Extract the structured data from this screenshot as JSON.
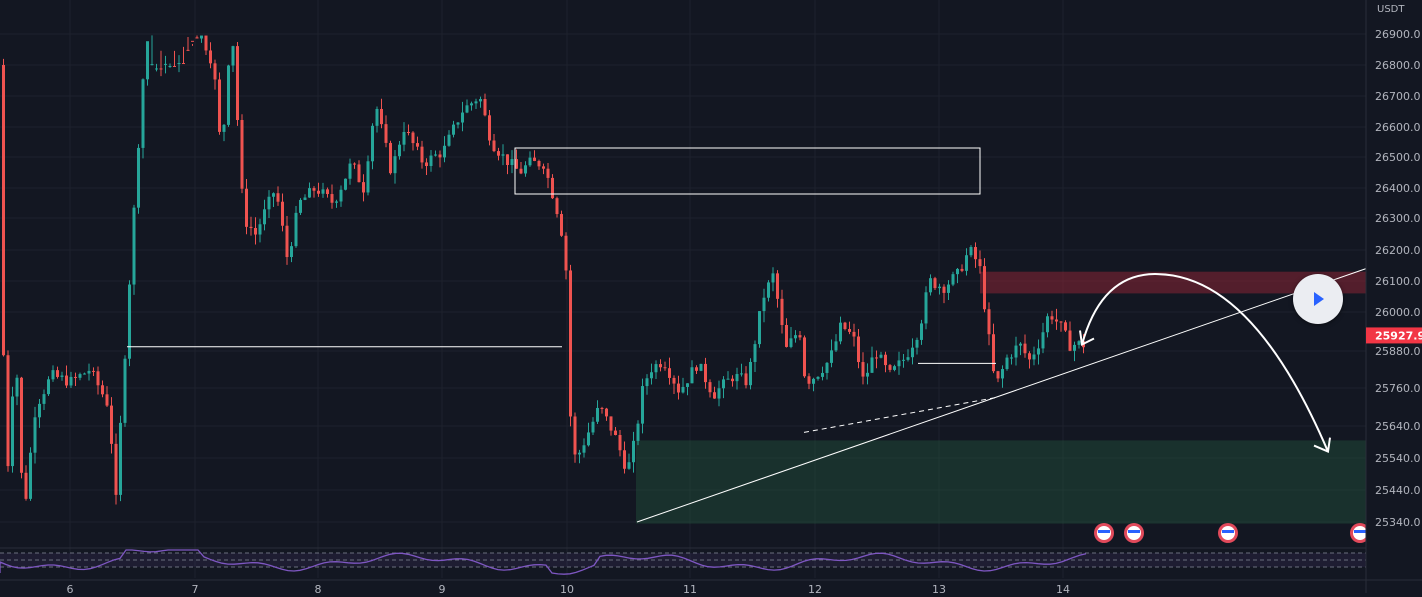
{
  "chart_data": {
    "type": "candlestick",
    "currency": "USDT",
    "price_axis_ticks": [
      "26900.0",
      "26800.0",
      "26700.0",
      "26600.0",
      "26500.0",
      "26400.0",
      "26300.0",
      "26200.0",
      "26100.0",
      "26000.0",
      "25880.0",
      "25760.0",
      "25640.0",
      "25540.0",
      "25440.0",
      "25340.0"
    ],
    "current_price": "25927.9",
    "time_axis_ticks": [
      "6",
      "7",
      "8",
      "9",
      "10",
      "11",
      "12",
      "13",
      "14"
    ],
    "ylim": [
      25320,
      26990
    ],
    "anchors": [
      [
        0,
        26800
      ],
      [
        6,
        25400
      ],
      [
        16,
        25900
      ],
      [
        24,
        25350
      ],
      [
        36,
        25700
      ],
      [
        52,
        25800
      ],
      [
        72,
        25780
      ],
      [
        90,
        25820
      ],
      [
        110,
        25700
      ],
      [
        116,
        25380
      ],
      [
        126,
        25900
      ],
      [
        136,
        26400
      ],
      [
        142,
        26700
      ],
      [
        150,
        27000
      ],
      [
        165,
        26990
      ],
      [
        178,
        26990
      ],
      [
        192,
        26900
      ],
      [
        202,
        26900
      ],
      [
        214,
        26800
      ],
      [
        222,
        26500
      ],
      [
        232,
        26950
      ],
      [
        244,
        26300
      ],
      [
        256,
        26250
      ],
      [
        276,
        26400
      ],
      [
        288,
        26170
      ],
      [
        300,
        26350
      ],
      [
        316,
        26400
      ],
      [
        334,
        26350
      ],
      [
        352,
        26480
      ],
      [
        364,
        26400
      ],
      [
        376,
        26680
      ],
      [
        392,
        26450
      ],
      [
        404,
        26600
      ],
      [
        424,
        26480
      ],
      [
        444,
        26520
      ],
      [
        462,
        26650
      ],
      [
        480,
        26700
      ],
      [
        492,
        26550
      ],
      [
        504,
        26500
      ],
      [
        520,
        26450
      ],
      [
        530,
        26480
      ],
      [
        544,
        26480
      ],
      [
        556,
        26350
      ],
      [
        566,
        26200
      ],
      [
        570,
        25700
      ],
      [
        576,
        25530
      ],
      [
        586,
        25600
      ],
      [
        600,
        25700
      ],
      [
        614,
        25620
      ],
      [
        628,
        25500
      ],
      [
        636,
        25600
      ],
      [
        642,
        25740
      ],
      [
        650,
        25820
      ],
      [
        664,
        25850
      ],
      [
        680,
        25750
      ],
      [
        698,
        25840
      ],
      [
        714,
        25740
      ],
      [
        734,
        25800
      ],
      [
        748,
        25780
      ],
      [
        756,
        25920
      ],
      [
        764,
        26050
      ],
      [
        774,
        26120
      ],
      [
        786,
        25880
      ],
      [
        800,
        25950
      ],
      [
        806,
        25780
      ],
      [
        816,
        25800
      ],
      [
        830,
        25850
      ],
      [
        842,
        25960
      ],
      [
        854,
        25920
      ],
      [
        864,
        25780
      ],
      [
        876,
        25880
      ],
      [
        890,
        25800
      ],
      [
        906,
        25860
      ],
      [
        920,
        25950
      ],
      [
        930,
        26100
      ],
      [
        944,
        26080
      ],
      [
        958,
        26120
      ],
      [
        970,
        26200
      ],
      [
        980,
        26150
      ],
      [
        988,
        25950
      ],
      [
        996,
        25760
      ],
      [
        1008,
        25860
      ],
      [
        1020,
        25900
      ],
      [
        1030,
        25850
      ],
      [
        1040,
        25910
      ],
      [
        1050,
        26000
      ],
      [
        1060,
        25960
      ],
      [
        1070,
        25900
      ],
      [
        1084,
        25900
      ]
    ],
    "zones": [
      {
        "kind": "supply",
        "from_index": 980,
        "to_index": 1366,
        "top": 26130,
        "bottom": 26060
      },
      {
        "kind": "demand",
        "from_index": 636,
        "to_index": 1366,
        "top": 25595,
        "bottom": 25335
      }
    ],
    "boxes": [
      {
        "from_index": 515,
        "to_index": 980,
        "top": 26530,
        "bottom": 26380
      }
    ],
    "lines": [
      {
        "x1": 127,
        "y1": 25893,
        "x2": 562,
        "y2": 25893,
        "style": "solid"
      },
      {
        "x1": 918,
        "y1": 25840,
        "x2": 996,
        "y2": 25840,
        "style": "solid"
      },
      {
        "x1": 804,
        "y1": 25620,
        "x2": 996,
        "y2": 25730,
        "style": "dashed"
      },
      {
        "x1": 637,
        "y1": 25340,
        "x2": 1366,
        "y2": 26140,
        "style": "solid"
      }
    ],
    "projection": {
      "start_index": 1082,
      "start_price": 25900,
      "peak_index": 1158,
      "peak_price": 26090,
      "end_index": 1328,
      "end_price": 25560
    },
    "event_markers": [
      1104,
      1134,
      1228,
      1360
    ],
    "indicator_panel": {
      "name": "RSI"
    }
  }
}
